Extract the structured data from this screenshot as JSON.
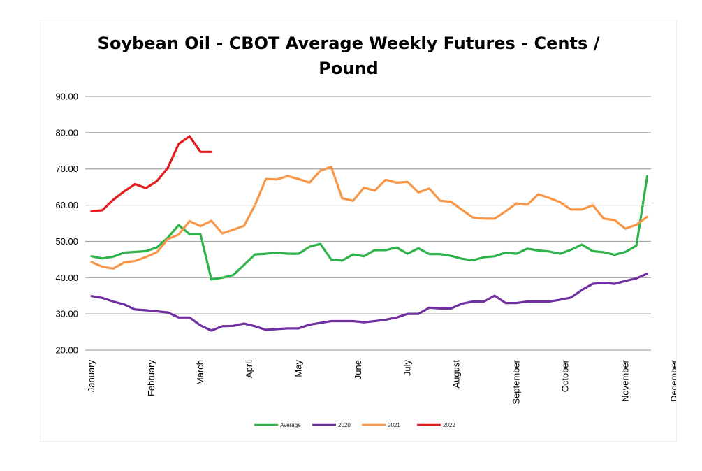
{
  "chart_data": {
    "type": "line",
    "title_lines": [
      "Soybean Oil - CBOT Average Weekly Futures - Cents /",
      "Pound"
    ],
    "xlabel": "",
    "ylabel": "",
    "ylim": [
      20,
      90
    ],
    "ytick_labels": [
      "90.00",
      "80.00",
      "70.00",
      "60.00",
      "50.00",
      "40.00",
      "30.00",
      "20.00"
    ],
    "yticks": [
      90,
      80,
      70,
      60,
      50,
      40,
      30,
      20
    ],
    "x_unit": "week",
    "xlim": [
      1,
      53
    ],
    "month_ticks": [
      {
        "label": "January",
        "week": 1
      },
      {
        "label": "February",
        "week": 6.5
      },
      {
        "label": "March",
        "week": 11
      },
      {
        "label": "April",
        "week": 15.5
      },
      {
        "label": "May",
        "week": 20
      },
      {
        "label": "June",
        "week": 25.5
      },
      {
        "label": "July",
        "week": 30
      },
      {
        "label": "August",
        "week": 34.5
      },
      {
        "label": "September",
        "week": 40
      },
      {
        "label": "October",
        "week": 44.5
      },
      {
        "label": "November",
        "week": 50
      },
      {
        "label": "December",
        "week": 54.5
      }
    ],
    "grid": true,
    "legend_position": "bottom",
    "series": [
      {
        "name": "Average",
        "color": "#2db34a",
        "values": [
          45.9,
          45.3,
          45.8,
          46.9,
          47.1,
          47.3,
          48.3,
          51.0,
          54.5,
          52.0,
          52.0,
          39.5,
          40.0,
          40.7,
          43.5,
          46.4,
          46.6,
          46.9,
          46.6,
          46.6,
          48.5,
          49.3,
          45.0,
          44.7,
          46.4,
          45.9,
          47.6,
          47.6,
          48.3,
          46.6,
          48.1,
          46.5,
          46.5,
          46.0,
          45.2,
          44.8,
          45.6,
          45.9,
          46.9,
          46.6,
          48.0,
          47.5,
          47.2,
          46.6,
          47.7,
          49.1,
          47.3,
          47.0,
          46.3,
          47.1,
          48.8,
          68.0
        ]
      },
      {
        "name": "2020",
        "color": "#7030a0",
        "values": [
          34.9,
          34.4,
          33.4,
          32.6,
          31.2,
          31.0,
          30.7,
          30.4,
          29.0,
          29.0,
          26.8,
          25.4,
          26.6,
          26.7,
          27.3,
          26.6,
          25.6,
          25.8,
          26.0,
          26.0,
          27.0,
          27.5,
          28.0,
          28.0,
          28.0,
          27.7,
          28.0,
          28.4,
          29.0,
          30.0,
          30.0,
          31.7,
          31.5,
          31.5,
          32.8,
          33.4,
          33.4,
          35.0,
          33.0,
          33.0,
          33.4,
          33.4,
          33.4,
          33.9,
          34.5,
          36.6,
          38.3,
          38.6,
          38.3,
          39.1,
          39.8,
          41.1
        ]
      },
      {
        "name": "2021",
        "color": "#f79646",
        "values": [
          44.3,
          43.0,
          42.5,
          44.2,
          44.6,
          45.7,
          47.0,
          50.6,
          51.9,
          55.6,
          54.2,
          55.7,
          52.2,
          53.2,
          54.3,
          60.0,
          67.2,
          67.1,
          68.0,
          67.2,
          66.2,
          69.5,
          70.6,
          61.9,
          61.2,
          64.8,
          64.0,
          67.0,
          66.2,
          66.4,
          63.5,
          64.6,
          61.2,
          60.9,
          58.7,
          56.6,
          56.3,
          56.3,
          58.3,
          60.5,
          60.1,
          63.0,
          62.0,
          60.8,
          58.8,
          58.8,
          60.0,
          56.3,
          55.9,
          53.5,
          54.6,
          56.8
        ]
      },
      {
        "name": "2022",
        "color": "#e41a1c",
        "values": [
          58.3,
          58.6,
          61.5,
          63.8,
          65.8,
          64.7,
          66.6,
          70.3,
          76.9,
          79.0,
          74.7,
          74.7
        ]
      }
    ]
  }
}
